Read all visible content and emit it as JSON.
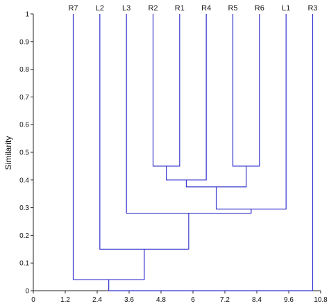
{
  "chart_data": {
    "type": "dendrogram",
    "ylabel": "Similarity",
    "xlim": [
      0,
      10.8
    ],
    "ylim": [
      0,
      1
    ],
    "x_ticks": [
      "0",
      "1.2",
      "2.4",
      "3.6",
      "4.8",
      "6",
      "7.2",
      "8.4",
      "9.6",
      "10.8"
    ],
    "y_ticks": [
      "0",
      "0.1",
      "0.2",
      "0.3",
      "0.4",
      "0.5",
      "0.6",
      "0.7",
      "0.8",
      "0.9",
      "1"
    ],
    "leaves": [
      {
        "label": "R7",
        "x": 1.5
      },
      {
        "label": "L2",
        "x": 2.5
      },
      {
        "label": "L3",
        "x": 3.5
      },
      {
        "label": "R2",
        "x": 4.5
      },
      {
        "label": "R1",
        "x": 5.5
      },
      {
        "label": "R4",
        "x": 6.5
      },
      {
        "label": "R5",
        "x": 7.5
      },
      {
        "label": "R6",
        "x": 8.5
      },
      {
        "label": "L1",
        "x": 9.5
      },
      {
        "label": "R3",
        "x": 10.5
      }
    ],
    "merges": [
      {
        "x1": 4.5,
        "y1": 1,
        "x2": 5.5,
        "y2": 1,
        "height": 0.45
      },
      {
        "x1": 7.5,
        "y1": 1,
        "x2": 8.5,
        "y2": 1,
        "height": 0.45
      },
      {
        "x1": 5.0,
        "y1": 0.45,
        "x2": 6.5,
        "y2": 1,
        "height": 0.4
      },
      {
        "x1": 5.75,
        "y1": 0.4,
        "x2": 8.0,
        "y2": 0.45,
        "height": 0.375
      },
      {
        "x1": 6.875,
        "y1": 0.375,
        "x2": 9.5,
        "y2": 1,
        "height": 0.295
      },
      {
        "x1": 3.5,
        "y1": 1,
        "x2": 8.1875,
        "y2": 0.295,
        "height": 0.28
      },
      {
        "x1": 2.5,
        "y1": 1,
        "x2": 5.84,
        "y2": 0.28,
        "height": 0.15
      },
      {
        "x1": 1.5,
        "y1": 1,
        "x2": 4.17,
        "y2": 0.15,
        "height": 0.04
      },
      {
        "x1": 2.835,
        "y1": 0.04,
        "x2": 10.5,
        "y2": 1,
        "height": 0.0
      }
    ],
    "line_color": "#3333cc",
    "grid": false,
    "legend": "none"
  }
}
